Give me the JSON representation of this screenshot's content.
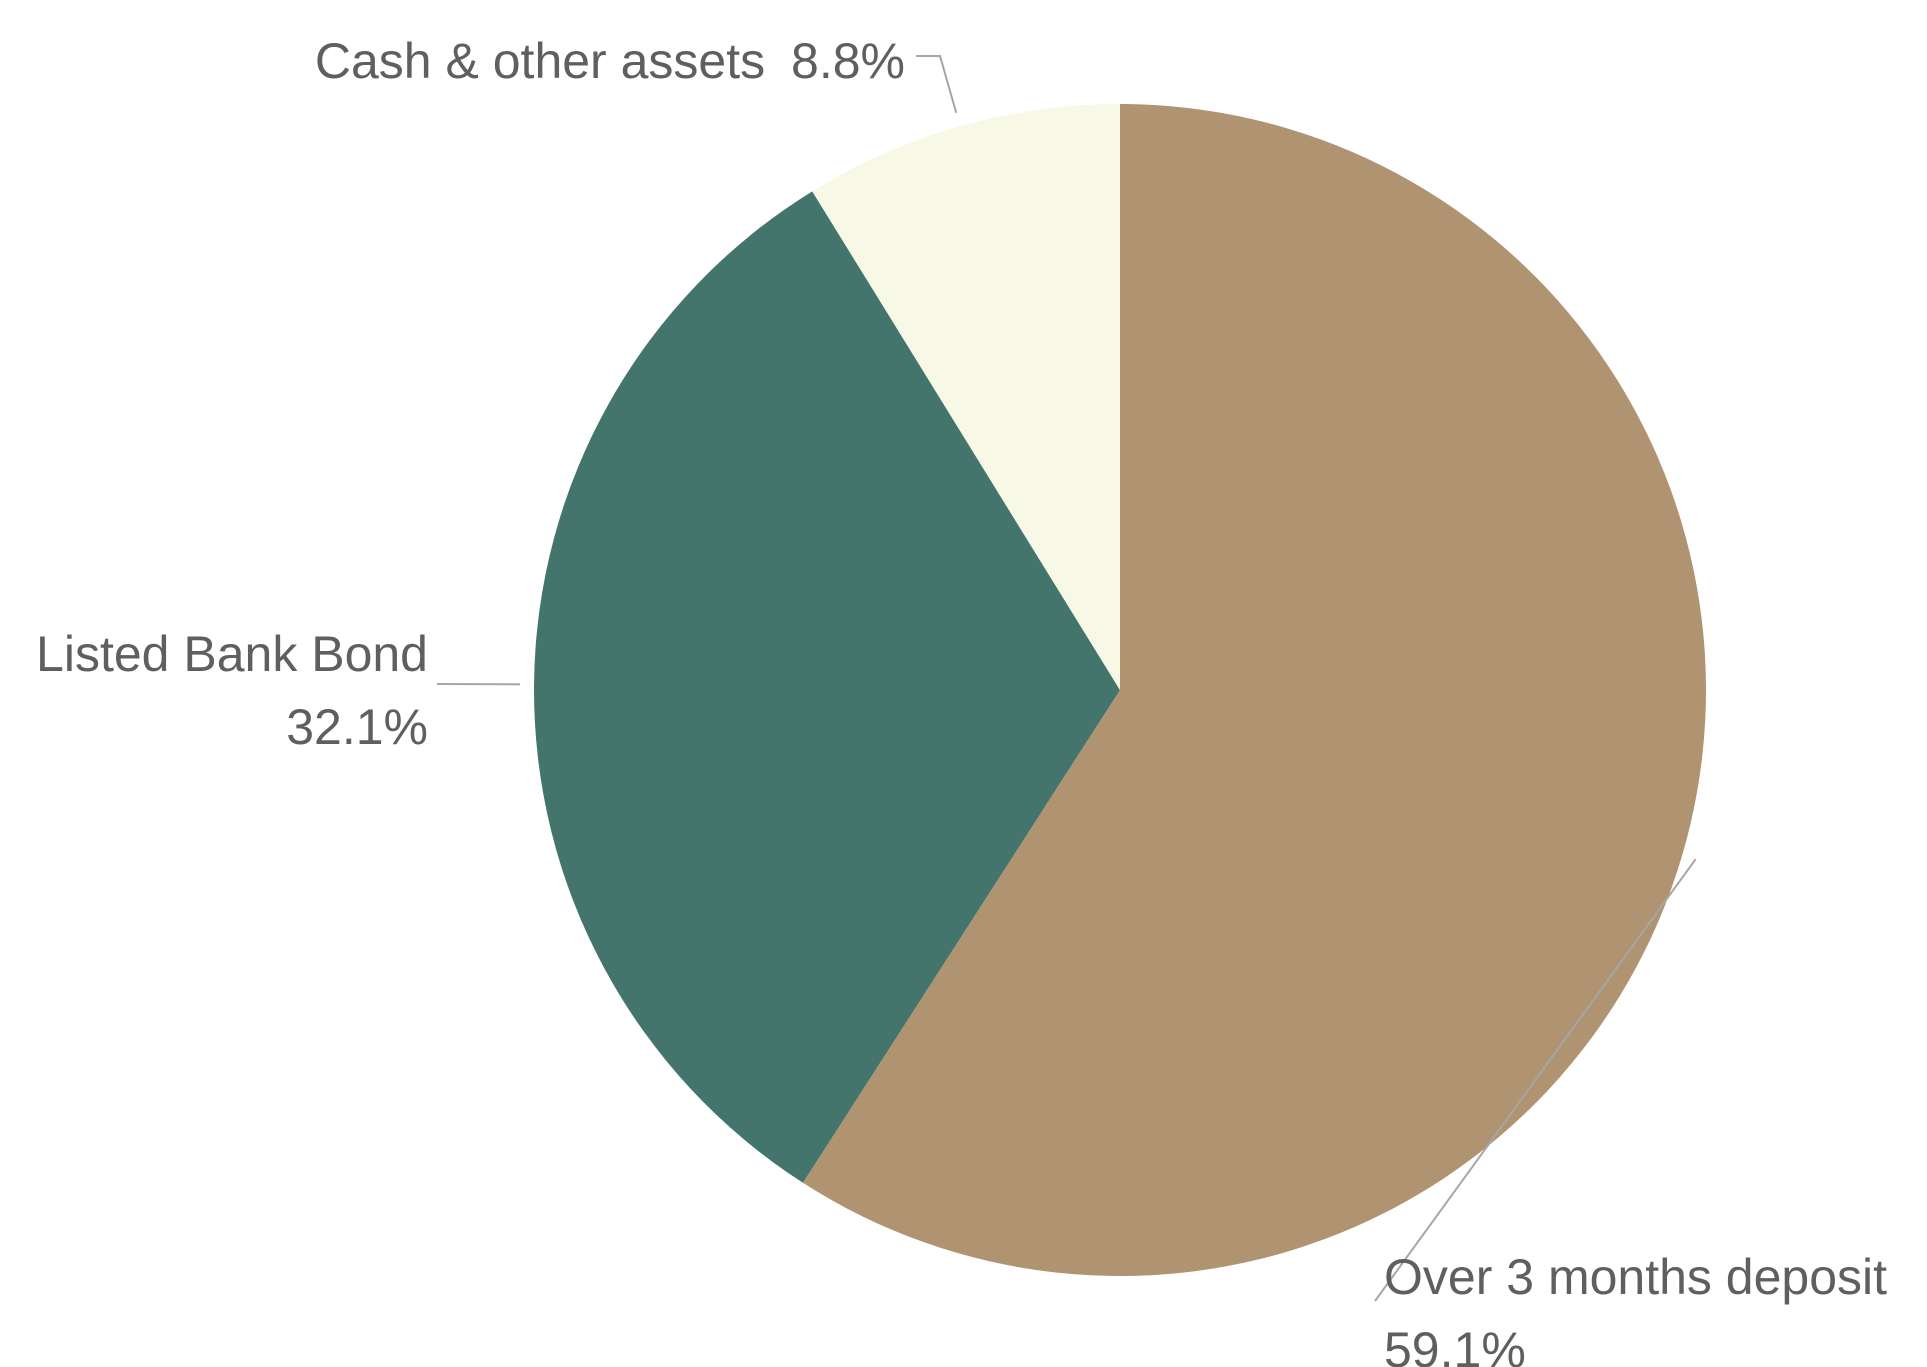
{
  "chart_data": {
    "type": "pie",
    "start_angle_deg": 0,
    "direction": "clockwise",
    "slices": [
      {
        "label": "Over 3 months deposit",
        "value": 59.1,
        "value_label": "59.1%",
        "color": "#B09370"
      },
      {
        "label": "Listed Bank Bond",
        "value": 32.1,
        "value_label": "32.1%",
        "color": "#44756C"
      },
      {
        "label": "Cash & other assets",
        "value": 8.8,
        "value_label": "8.8%",
        "color": "#F7F8E6"
      }
    ]
  }
}
